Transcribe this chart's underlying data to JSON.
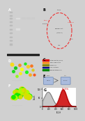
{
  "bg_color": "#d0d0d0",
  "gel_bg": "#0a0a0a",
  "white": "#ffffff",
  "black": "#000000",
  "panel_labels": [
    "A",
    "B",
    "C",
    "D",
    "E",
    "F",
    "G"
  ],
  "circle_color": "#ee3333",
  "green_color": "#00ee00",
  "yellow_color": "#dddd00",
  "orange_color": "#ff8800",
  "red_hist_color": "#cc0000",
  "gray_hist_color": "#999999",
  "label_color_A": "#ffffff",
  "label_color_rest": "#000000",
  "panel_B_bg": "#f8f8f8",
  "panel_C_bg": "#f0f0f0",
  "panel_E_bg": "#eeeeee",
  "panel_G_bg": "#ffffff",
  "legend_colors": [
    "#dd0000",
    "#ff8800",
    "#888800",
    "#000088",
    "#008800"
  ],
  "hist_percent": "96.55%"
}
